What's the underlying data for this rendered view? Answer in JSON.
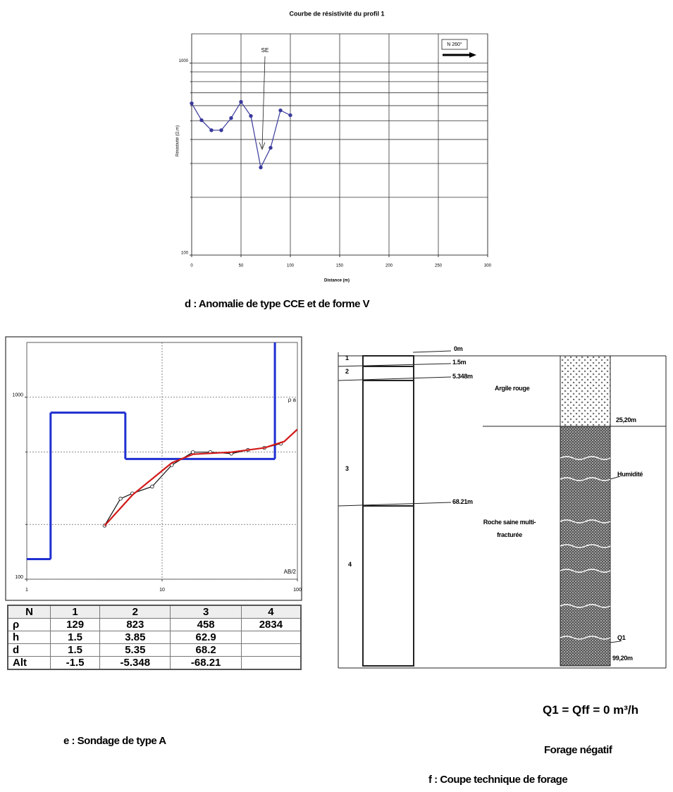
{
  "chart_data": [
    {
      "type": "line",
      "title": "Courbe de résistivité du profil 1",
      "xlabel": "Distance (m)",
      "ylabel": "Résistivité (Ω.m)",
      "x": [
        0,
        10,
        20,
        30,
        40,
        50,
        60,
        70,
        80,
        90,
        100
      ],
      "series": [
        {
          "color": "#3a3a9c",
          "marker_fill": "#3a3a9c",
          "values": [
            617,
            504,
            447,
            447,
            517,
            628,
            530,
            286,
            362,
            567,
            535
          ]
        }
      ],
      "log_y": true,
      "xlim": [
        0,
        300
      ],
      "ylim": [
        100,
        1420
      ],
      "xticks": [
        0,
        50,
        100,
        150,
        200,
        250,
        300
      ],
      "yticks": [
        100,
        1000
      ],
      "yminor": [
        200,
        300,
        400,
        500,
        600,
        700,
        800,
        900
      ],
      "grid": true,
      "grid_style": "solid",
      "annotations": [
        "SE",
        "N 260°"
      ]
    },
    {
      "type": "line",
      "ylabel": "ρ a",
      "xlabel": "AB/2",
      "log_x": true,
      "log_y": true,
      "xlim": [
        1,
        100
      ],
      "ylim": [
        100,
        2000
      ],
      "xticks": [
        1,
        10,
        100
      ],
      "yticks": [
        100,
        1000
      ],
      "yminor": [
        200,
        500
      ],
      "grid": true,
      "grid_style": "dotted",
      "model_color": "#1f2fd0",
      "series": [
        {
          "color": "#111111",
          "marker_fill": "#ffffff",
          "x": [
            3.76,
            4.93,
            6.03,
            8.45,
            11.8,
            16.9,
            22.7,
            32.5,
            43.1,
            57,
            75.5
          ],
          "values": [
            197,
            277,
            296,
            323,
            424,
            499,
            499,
            490,
            513,
            527,
            556
          ]
        },
        {
          "color": "#d21a1a",
          "x": [
            3.76,
            6.03,
            11.8,
            16.9,
            32.5,
            57,
            79.9,
            100
          ],
          "values": [
            197,
            290,
            436,
            486,
            499,
            527,
            571,
            666
          ]
        }
      ]
    }
  ],
  "table": {
    "columns": [
      "N",
      "1",
      "2",
      "3",
      "4"
    ],
    "rows": [
      {
        "label": "ρ",
        "values": [
          129,
          823,
          458,
          2834
        ]
      },
      {
        "label": "h",
        "values": [
          1.5,
          3.85,
          62.9
        ]
      },
      {
        "label": "d",
        "values": [
          1.5,
          5.35,
          68.2
        ]
      },
      {
        "label": "Alt",
        "values": [
          -1.5,
          -5.348,
          -68.21
        ]
      }
    ]
  },
  "borehole": {
    "layers": [
      "1",
      "2",
      "3",
      "4"
    ],
    "depths": [
      "0m",
      "1.5m",
      "5.348m",
      "68.21m"
    ],
    "lithology": [
      "Argile rouge",
      "Roche saine multi-fracturée"
    ],
    "log_depths": [
      "25,20m",
      "99,20m"
    ],
    "notes": [
      "Humidité",
      "Q1"
    ]
  },
  "captions": {
    "d": "d : Anomalie de type CCE et de forme V",
    "e": "e : Sondage de type A",
    "flow": "Q1 = Qff = 0 m³/h",
    "result": "Forage négatif",
    "f": "f : Coupe technique de forage"
  }
}
